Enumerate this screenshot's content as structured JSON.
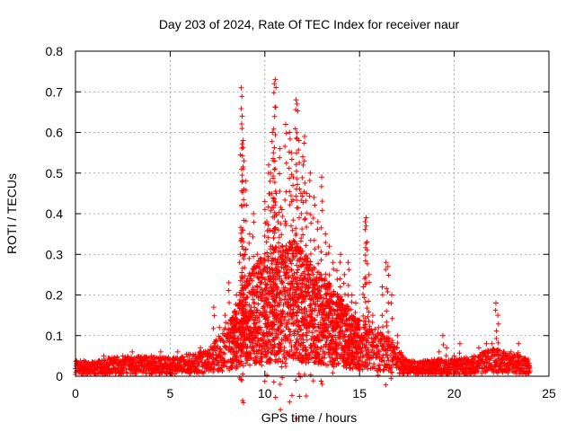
{
  "chart_data": {
    "type": "scatter",
    "title": "Day 203 of 2024, Rate Of TEC Index for receiver naur",
    "xlabel": "GPS time / hours",
    "ylabel": "ROTI / TECUs",
    "xlim": [
      0,
      25
    ],
    "ylim": [
      0,
      0.8
    ],
    "xticks": [
      "0",
      "5",
      "10",
      "15",
      "20",
      "25"
    ],
    "yticks": [
      "0",
      "0.1",
      "0.2",
      "0.3",
      "0.4",
      "0.5",
      "0.6",
      "0.7",
      "0.8"
    ],
    "grid": true,
    "marker": "plus",
    "series_color": "#ff0000",
    "series": [
      {
        "points": [
          [
            0.1,
            0.03
          ],
          [
            0.5,
            0.02
          ],
          [
            1.0,
            0.03
          ],
          [
            1.5,
            0.05
          ],
          [
            2.0,
            0.03
          ],
          [
            2.5,
            0.05
          ],
          [
            3.0,
            0.06
          ],
          [
            3.5,
            0.04
          ],
          [
            4.0,
            0.05
          ],
          [
            4.5,
            0.06
          ],
          [
            5.0,
            0.04
          ],
          [
            5.4,
            0.06
          ],
          [
            6.0,
            0.04
          ],
          [
            6.6,
            0.07
          ],
          [
            7.0,
            0.05
          ],
          [
            7.3,
            0.17
          ],
          [
            7.6,
            0.12
          ],
          [
            7.9,
            0.15
          ],
          [
            8.1,
            0.23
          ],
          [
            8.3,
            0.1
          ],
          [
            8.5,
            0.2
          ],
          [
            8.7,
            0.3
          ],
          [
            8.8,
            0.36
          ],
          [
            8.75,
            0.71
          ],
          [
            8.8,
            0.64
          ],
          [
            8.85,
            0.58
          ],
          [
            8.9,
            0.53
          ],
          [
            9.0,
            0.48
          ],
          [
            9.2,
            0.35
          ],
          [
            9.4,
            0.4
          ],
          [
            9.6,
            0.3
          ],
          [
            9.8,
            0.25
          ],
          [
            10.0,
            0.43
          ],
          [
            10.1,
            0.38
          ],
          [
            10.2,
            0.52
          ],
          [
            10.3,
            0.5
          ],
          [
            10.4,
            0.6
          ],
          [
            10.45,
            0.55
          ],
          [
            10.5,
            0.72
          ],
          [
            10.55,
            0.73
          ],
          [
            10.6,
            0.45
          ],
          [
            10.7,
            0.38
          ],
          [
            10.8,
            0.56
          ],
          [
            10.9,
            0.41
          ],
          [
            11.1,
            0.62
          ],
          [
            11.3,
            0.6
          ],
          [
            11.4,
            0.55
          ],
          [
            11.5,
            0.49
          ],
          [
            11.65,
            0.68
          ],
          [
            11.7,
            0.67
          ],
          [
            11.8,
            0.58
          ],
          [
            11.9,
            0.45
          ],
          [
            12.0,
            0.54
          ],
          [
            12.1,
            0.59
          ],
          [
            12.2,
            0.45
          ],
          [
            12.4,
            0.5
          ],
          [
            12.6,
            0.44
          ],
          [
            12.8,
            0.38
          ],
          [
            13.0,
            0.49
          ],
          [
            13.2,
            0.35
          ],
          [
            13.4,
            0.32
          ],
          [
            13.6,
            0.28
          ],
          [
            13.8,
            0.26
          ],
          [
            14.0,
            0.3
          ],
          [
            14.2,
            0.25
          ],
          [
            14.4,
            0.28
          ],
          [
            14.6,
            0.2
          ],
          [
            14.8,
            0.18
          ],
          [
            15.0,
            0.12
          ],
          [
            15.2,
            0.22
          ],
          [
            15.3,
            0.38
          ],
          [
            15.35,
            0.39
          ],
          [
            15.4,
            0.33
          ],
          [
            15.5,
            0.25
          ],
          [
            15.7,
            0.15
          ],
          [
            16.0,
            0.12
          ],
          [
            16.2,
            0.22
          ],
          [
            16.4,
            0.28
          ],
          [
            16.5,
            0.27
          ],
          [
            16.7,
            0.2
          ],
          [
            17.0,
            0.1
          ],
          [
            17.3,
            0.04
          ],
          [
            17.8,
            0.03
          ],
          [
            18.3,
            0.03
          ],
          [
            18.8,
            0.04
          ],
          [
            19.2,
            0.06
          ],
          [
            19.4,
            0.1
          ],
          [
            19.6,
            0.07
          ],
          [
            20.0,
            0.05
          ],
          [
            20.3,
            0.08
          ],
          [
            20.6,
            0.04
          ],
          [
            21.0,
            0.04
          ],
          [
            21.3,
            0.07
          ],
          [
            21.7,
            0.08
          ],
          [
            22.0,
            0.08
          ],
          [
            22.2,
            0.18
          ],
          [
            22.3,
            0.15
          ],
          [
            22.6,
            0.06
          ],
          [
            23.0,
            0.06
          ],
          [
            23.4,
            0.08
          ],
          [
            23.8,
            0.04
          ]
        ]
      }
    ],
    "envelope": [
      [
        0,
        0.03
      ],
      [
        1,
        0.025
      ],
      [
        2,
        0.035
      ],
      [
        3,
        0.035
      ],
      [
        4,
        0.035
      ],
      [
        5,
        0.035
      ],
      [
        6,
        0.04
      ],
      [
        7,
        0.045
      ],
      [
        8,
        0.09
      ],
      [
        8.5,
        0.12
      ],
      [
        9,
        0.17
      ],
      [
        9.5,
        0.2
      ],
      [
        10,
        0.22
      ],
      [
        10.5,
        0.23
      ],
      [
        11,
        0.23
      ],
      [
        11.5,
        0.24
      ],
      [
        12,
        0.22
      ],
      [
        12.5,
        0.2
      ],
      [
        13,
        0.18
      ],
      [
        13.5,
        0.16
      ],
      [
        14,
        0.14
      ],
      [
        14.5,
        0.12
      ],
      [
        15,
        0.1
      ],
      [
        15.5,
        0.09
      ],
      [
        16,
        0.08
      ],
      [
        16.5,
        0.07
      ],
      [
        17,
        0.05
      ],
      [
        17.5,
        0.03
      ],
      [
        18,
        0.025
      ],
      [
        19,
        0.03
      ],
      [
        20,
        0.03
      ],
      [
        21,
        0.035
      ],
      [
        22,
        0.05
      ],
      [
        23,
        0.04
      ],
      [
        24,
        0.03
      ]
    ]
  }
}
